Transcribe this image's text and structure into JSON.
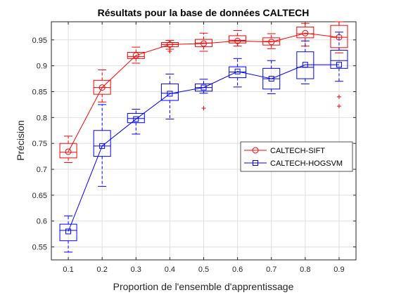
{
  "chart_data": {
    "type": "box",
    "title": "Résultats pour la base de données CALTECH",
    "xlabel": "Proportion de l'ensemble d'apprentissage",
    "ylabel": "Précision",
    "xlim": [
      0.05,
      0.95
    ],
    "ylim": [
      0.525,
      0.985
    ],
    "x_ticks": [
      "0.1",
      "0.2",
      "0.3",
      "0.4",
      "0.5",
      "0.6",
      "0.7",
      "0.8",
      "0.9"
    ],
    "y_ticks": [
      "0.55",
      "0.6",
      "0.65",
      "0.7",
      "0.75",
      "0.8",
      "0.85",
      "0.9",
      "0.95"
    ],
    "legend_position": "right",
    "series": [
      {
        "name": "CALTECH-SIFT",
        "color": "#ff0000",
        "marker": "circle",
        "x": [
          0.1,
          0.2,
          0.3,
          0.4,
          0.5,
          0.6,
          0.7,
          0.8,
          0.9
        ],
        "means": [
          0.734,
          0.858,
          0.92,
          0.941,
          0.943,
          0.948,
          0.946,
          0.963,
          0.955
        ],
        "boxes": [
          {
            "whisker_low": 0.713,
            "q1": 0.722,
            "median": 0.733,
            "q3": 0.75,
            "whisker_high": 0.764,
            "outliers": []
          },
          {
            "whisker_low": 0.83,
            "q1": 0.845,
            "median": 0.858,
            "q3": 0.872,
            "whisker_high": 0.892,
            "outliers": []
          },
          {
            "whisker_low": 0.905,
            "q1": 0.914,
            "median": 0.918,
            "q3": 0.926,
            "whisker_high": 0.936,
            "outliers": []
          },
          {
            "whisker_low": 0.932,
            "q1": 0.937,
            "median": 0.941,
            "q3": 0.945,
            "whisker_high": 0.949,
            "outliers": [
              0.928
            ]
          },
          {
            "whisker_low": 0.928,
            "q1": 0.937,
            "median": 0.944,
            "q3": 0.951,
            "whisker_high": 0.963,
            "outliers": [
              0.818
            ]
          },
          {
            "whisker_low": 0.938,
            "q1": 0.944,
            "median": 0.949,
            "q3": 0.958,
            "whisker_high": 0.968,
            "outliers": []
          },
          {
            "whisker_low": 0.933,
            "q1": 0.94,
            "median": 0.947,
            "q3": 0.954,
            "whisker_high": 0.962,
            "outliers": []
          },
          {
            "whisker_low": 0.938,
            "q1": 0.954,
            "median": 0.962,
            "q3": 0.975,
            "whisker_high": 0.982,
            "outliers": []
          },
          {
            "whisker_low": 0.925,
            "q1": 0.935,
            "median": 0.955,
            "q3": 0.978,
            "whisker_high": 0.985,
            "outliers": [
              0.84,
              0.822
            ]
          }
        ]
      },
      {
        "name": "CALTECH-HOGSVM",
        "color": "#0000ff",
        "marker": "square",
        "x": [
          0.1,
          0.2,
          0.3,
          0.4,
          0.5,
          0.6,
          0.7,
          0.8,
          0.9
        ],
        "means": [
          0.58,
          0.745,
          0.797,
          0.846,
          0.858,
          0.889,
          0.875,
          0.902,
          0.902
        ],
        "boxes": [
          {
            "whisker_low": 0.54,
            "q1": 0.562,
            "median": 0.582,
            "q3": 0.594,
            "whisker_high": 0.61,
            "outliers": []
          },
          {
            "whisker_low": 0.667,
            "q1": 0.725,
            "median": 0.745,
            "q3": 0.775,
            "whisker_high": 0.825,
            "outliers": []
          },
          {
            "whisker_low": 0.768,
            "q1": 0.79,
            "median": 0.798,
            "q3": 0.808,
            "whisker_high": 0.816,
            "outliers": []
          },
          {
            "whisker_low": 0.797,
            "q1": 0.833,
            "median": 0.847,
            "q3": 0.865,
            "whisker_high": 0.884,
            "outliers": []
          },
          {
            "whisker_low": 0.847,
            "q1": 0.851,
            "median": 0.858,
            "q3": 0.865,
            "whisker_high": 0.874,
            "outliers": []
          },
          {
            "whisker_low": 0.859,
            "q1": 0.877,
            "median": 0.888,
            "q3": 0.898,
            "whisker_high": 0.914,
            "outliers": []
          },
          {
            "whisker_low": 0.846,
            "q1": 0.855,
            "median": 0.875,
            "q3": 0.895,
            "whisker_high": 0.91,
            "outliers": []
          },
          {
            "whisker_low": 0.865,
            "q1": 0.875,
            "median": 0.897,
            "q3": 0.927,
            "whisker_high": 0.948,
            "outliers": []
          },
          {
            "whisker_low": 0.87,
            "q1": 0.895,
            "median": 0.91,
            "q3": 0.93,
            "whisker_high": 0.965,
            "outliers": []
          }
        ]
      }
    ]
  }
}
